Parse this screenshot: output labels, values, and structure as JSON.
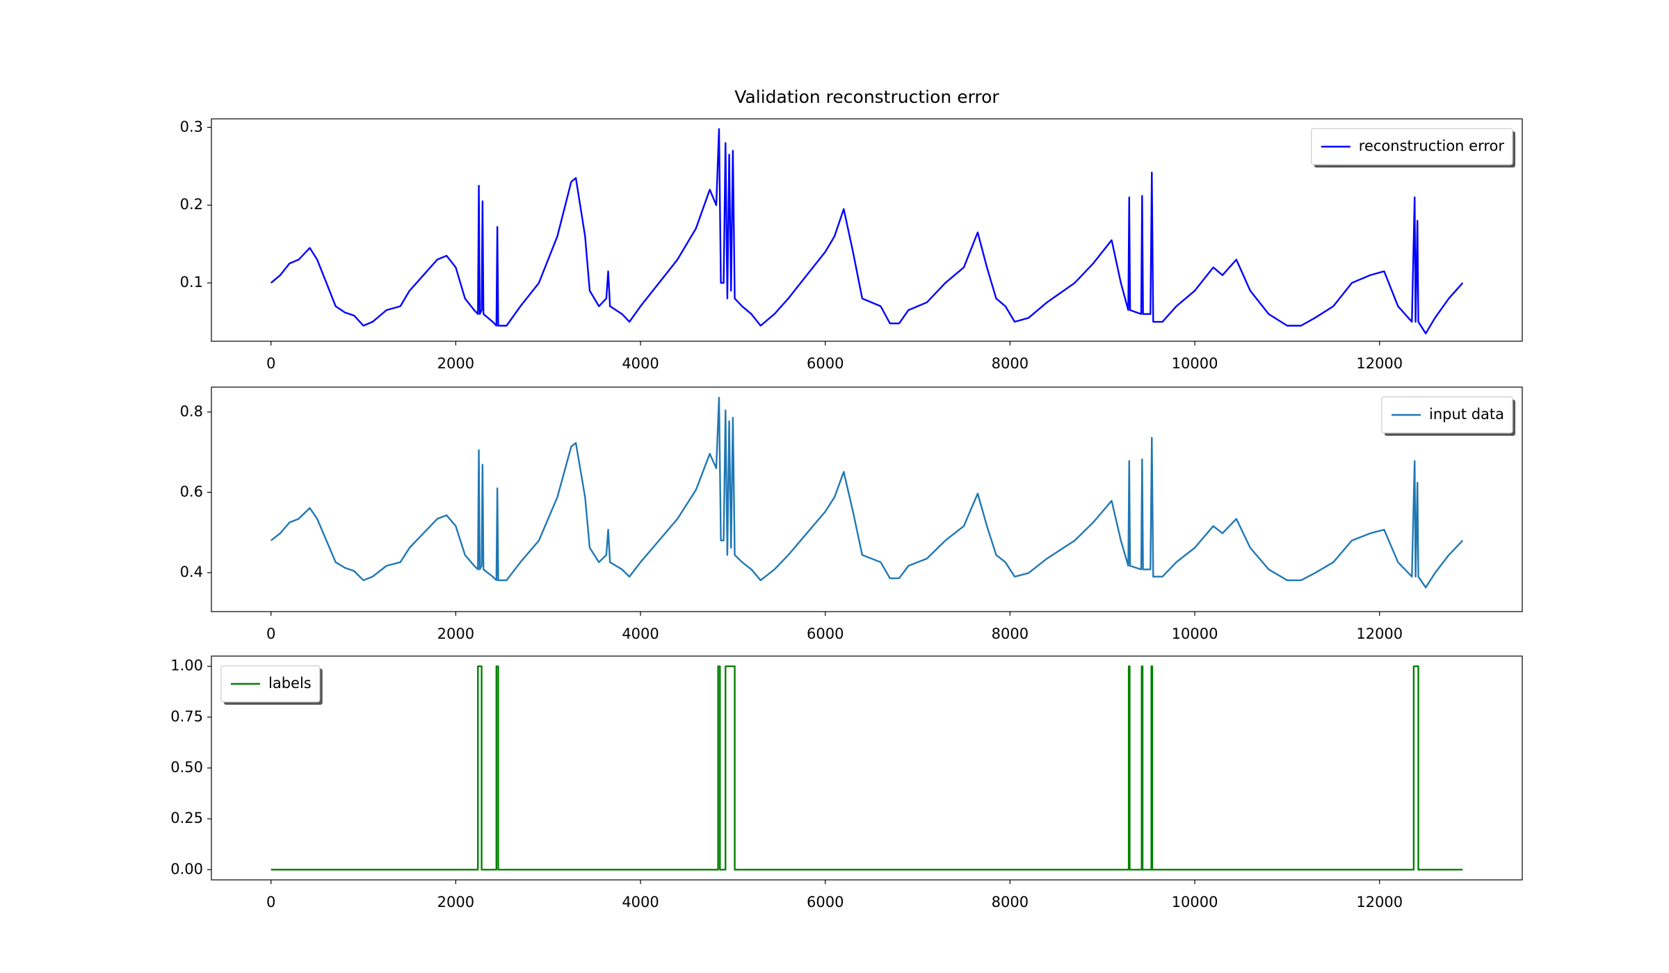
{
  "chart_data": [
    {
      "type": "line",
      "title": "Validation reconstruction error",
      "x": [
        0,
        100,
        200,
        300,
        420,
        500,
        600,
        700,
        800,
        900,
        1000,
        1100,
        1250,
        1400,
        1500,
        1650,
        1800,
        1900,
        2000,
        2100,
        2200,
        2240,
        2250,
        2260,
        2280,
        2290,
        2300,
        2400,
        2440,
        2450,
        2460,
        2550,
        2700,
        2900,
        3100,
        3250,
        3300,
        3400,
        3450,
        3550,
        3630,
        3650,
        3670,
        3800,
        3880,
        4000,
        4200,
        4400,
        4600,
        4750,
        4820,
        4850,
        4870,
        4900,
        4920,
        4940,
        4960,
        4980,
        5000,
        5020,
        5100,
        5200,
        5300,
        5450,
        5600,
        5800,
        6000,
        6100,
        6200,
        6300,
        6400,
        6600,
        6700,
        6800,
        6900,
        7100,
        7300,
        7500,
        7650,
        7750,
        7850,
        7950,
        8050,
        8200,
        8400,
        8700,
        8900,
        9100,
        9200,
        9280,
        9290,
        9300,
        9420,
        9430,
        9440,
        9520,
        9535,
        9550,
        9650,
        9800,
        10000,
        10200,
        10300,
        10450,
        10600,
        10800,
        11000,
        11150,
        11300,
        11500,
        11700,
        11900,
        12050,
        12200,
        12350,
        12380,
        12390,
        12410,
        12420,
        12500,
        12600,
        12750,
        12900
      ],
      "series": [
        {
          "name": "reconstruction error",
          "color": "#0000ff",
          "values": [
            0.1,
            0.11,
            0.125,
            0.13,
            0.145,
            0.13,
            0.1,
            0.07,
            0.062,
            0.058,
            0.045,
            0.05,
            0.065,
            0.07,
            0.09,
            0.11,
            0.13,
            0.135,
            0.12,
            0.08,
            0.065,
            0.06,
            0.225,
            0.06,
            0.065,
            0.205,
            0.06,
            0.05,
            0.045,
            0.172,
            0.045,
            0.045,
            0.07,
            0.1,
            0.16,
            0.23,
            0.235,
            0.16,
            0.09,
            0.07,
            0.08,
            0.115,
            0.07,
            0.06,
            0.05,
            0.07,
            0.1,
            0.13,
            0.17,
            0.22,
            0.2,
            0.298,
            0.1,
            0.1,
            0.28,
            0.08,
            0.265,
            0.09,
            0.27,
            0.08,
            0.07,
            0.06,
            0.045,
            0.06,
            0.08,
            0.11,
            0.14,
            0.16,
            0.195,
            0.14,
            0.08,
            0.07,
            0.048,
            0.048,
            0.065,
            0.075,
            0.1,
            0.12,
            0.165,
            0.12,
            0.08,
            0.07,
            0.05,
            0.055,
            0.075,
            0.1,
            0.125,
            0.155,
            0.1,
            0.065,
            0.21,
            0.065,
            0.06,
            0.212,
            0.06,
            0.06,
            0.242,
            0.05,
            0.05,
            0.07,
            0.09,
            0.12,
            0.11,
            0.13,
            0.09,
            0.06,
            0.045,
            0.045,
            0.055,
            0.07,
            0.1,
            0.11,
            0.115,
            0.07,
            0.05,
            0.21,
            0.05,
            0.18,
            0.05,
            0.035,
            0.055,
            0.08,
            0.1
          ]
        }
      ],
      "xlim": [
        -645,
        13545
      ],
      "xticks": [
        0,
        2000,
        4000,
        6000,
        8000,
        10000,
        12000
      ],
      "ylim": [
        0.025,
        0.311
      ],
      "yticks": [
        0.1,
        0.2,
        0.3
      ],
      "legend": "upper right"
    },
    {
      "type": "line",
      "x": [
        0,
        100,
        200,
        300,
        420,
        500,
        600,
        700,
        800,
        900,
        1000,
        1100,
        1250,
        1400,
        1500,
        1650,
        1800,
        1900,
        2000,
        2100,
        2200,
        2240,
        2250,
        2260,
        2280,
        2290,
        2300,
        2400,
        2440,
        2450,
        2460,
        2550,
        2700,
        2900,
        3100,
        3250,
        3300,
        3400,
        3450,
        3550,
        3630,
        3650,
        3670,
        3800,
        3880,
        4000,
        4200,
        4400,
        4600,
        4750,
        4820,
        4850,
        4870,
        4900,
        4920,
        4940,
        4960,
        4980,
        5000,
        5020,
        5100,
        5200,
        5300,
        5450,
        5600,
        5800,
        6000,
        6100,
        6200,
        6300,
        6400,
        6600,
        6700,
        6800,
        6900,
        7100,
        7300,
        7500,
        7650,
        7750,
        7850,
        7950,
        8050,
        8200,
        8400,
        8700,
        8900,
        9100,
        9200,
        9280,
        9290,
        9300,
        9420,
        9430,
        9440,
        9520,
        9535,
        9550,
        9650,
        9800,
        10000,
        10200,
        10300,
        10450,
        10600,
        10800,
        11000,
        11150,
        11300,
        11500,
        11700,
        11900,
        12050,
        12200,
        12350,
        12380,
        12390,
        12410,
        12420,
        12500,
        12600,
        12750,
        12900
      ],
      "series": [
        {
          "name": "input data",
          "color": "#1f77b4",
          "values": [
            0.48,
            0.498,
            0.525,
            0.534,
            0.561,
            0.534,
            0.48,
            0.426,
            0.412,
            0.404,
            0.381,
            0.39,
            0.417,
            0.426,
            0.462,
            0.498,
            0.534,
            0.543,
            0.516,
            0.444,
            0.417,
            0.408,
            0.705,
            0.408,
            0.417,
            0.669,
            0.408,
            0.39,
            0.381,
            0.61,
            0.381,
            0.381,
            0.426,
            0.48,
            0.588,
            0.714,
            0.723,
            0.588,
            0.462,
            0.426,
            0.444,
            0.507,
            0.426,
            0.408,
            0.39,
            0.426,
            0.48,
            0.534,
            0.606,
            0.696,
            0.66,
            0.836,
            0.48,
            0.48,
            0.804,
            0.444,
            0.777,
            0.462,
            0.786,
            0.444,
            0.426,
            0.408,
            0.381,
            0.408,
            0.444,
            0.498,
            0.552,
            0.588,
            0.651,
            0.552,
            0.444,
            0.426,
            0.386,
            0.386,
            0.417,
            0.435,
            0.48,
            0.516,
            0.597,
            0.516,
            0.444,
            0.426,
            0.39,
            0.399,
            0.435,
            0.48,
            0.525,
            0.579,
            0.48,
            0.417,
            0.678,
            0.417,
            0.408,
            0.682,
            0.408,
            0.408,
            0.736,
            0.39,
            0.39,
            0.426,
            0.462,
            0.516,
            0.498,
            0.534,
            0.462,
            0.408,
            0.381,
            0.381,
            0.399,
            0.426,
            0.48,
            0.498,
            0.507,
            0.426,
            0.39,
            0.678,
            0.39,
            0.624,
            0.39,
            0.363,
            0.399,
            0.444,
            0.48
          ]
        }
      ],
      "xlim": [
        -645,
        13545
      ],
      "xticks": [
        0,
        2000,
        4000,
        6000,
        8000,
        10000,
        12000
      ],
      "ylim": [
        0.303,
        0.862
      ],
      "yticks": [
        0.4,
        0.6,
        0.8
      ],
      "legend": "upper right"
    },
    {
      "type": "line",
      "x": [
        0,
        2240,
        2240,
        2280,
        2280,
        2440,
        2440,
        2460,
        2460,
        4840,
        4840,
        4860,
        4860,
        4920,
        4920,
        5020,
        5020,
        9285,
        9285,
        9295,
        9295,
        9425,
        9425,
        9435,
        9435,
        9530,
        9530,
        9540,
        9540,
        12370,
        12370,
        12420,
        12420,
        12900
      ],
      "series": [
        {
          "name": "labels",
          "color": "#008000",
          "values": [
            0,
            0,
            1,
            1,
            0,
            0,
            1,
            1,
            0,
            0,
            1,
            1,
            0,
            0,
            1,
            1,
            0,
            0,
            1,
            1,
            0,
            0,
            1,
            1,
            0,
            0,
            1,
            1,
            0,
            0,
            1,
            1,
            0,
            0
          ]
        }
      ],
      "xlim": [
        -645,
        13545
      ],
      "xticks": [
        0,
        2000,
        4000,
        6000,
        8000,
        10000,
        12000
      ],
      "ylim": [
        -0.05,
        1.05
      ],
      "yticks": [
        {
          "value": 0,
          "label": "0.00"
        },
        {
          "value": 0.25,
          "label": "0.25"
        },
        {
          "value": 0.5,
          "label": "0.50"
        },
        {
          "value": 0.75,
          "label": "0.75"
        },
        {
          "value": 1,
          "label": "1.00"
        }
      ],
      "legend": "upper left"
    }
  ]
}
